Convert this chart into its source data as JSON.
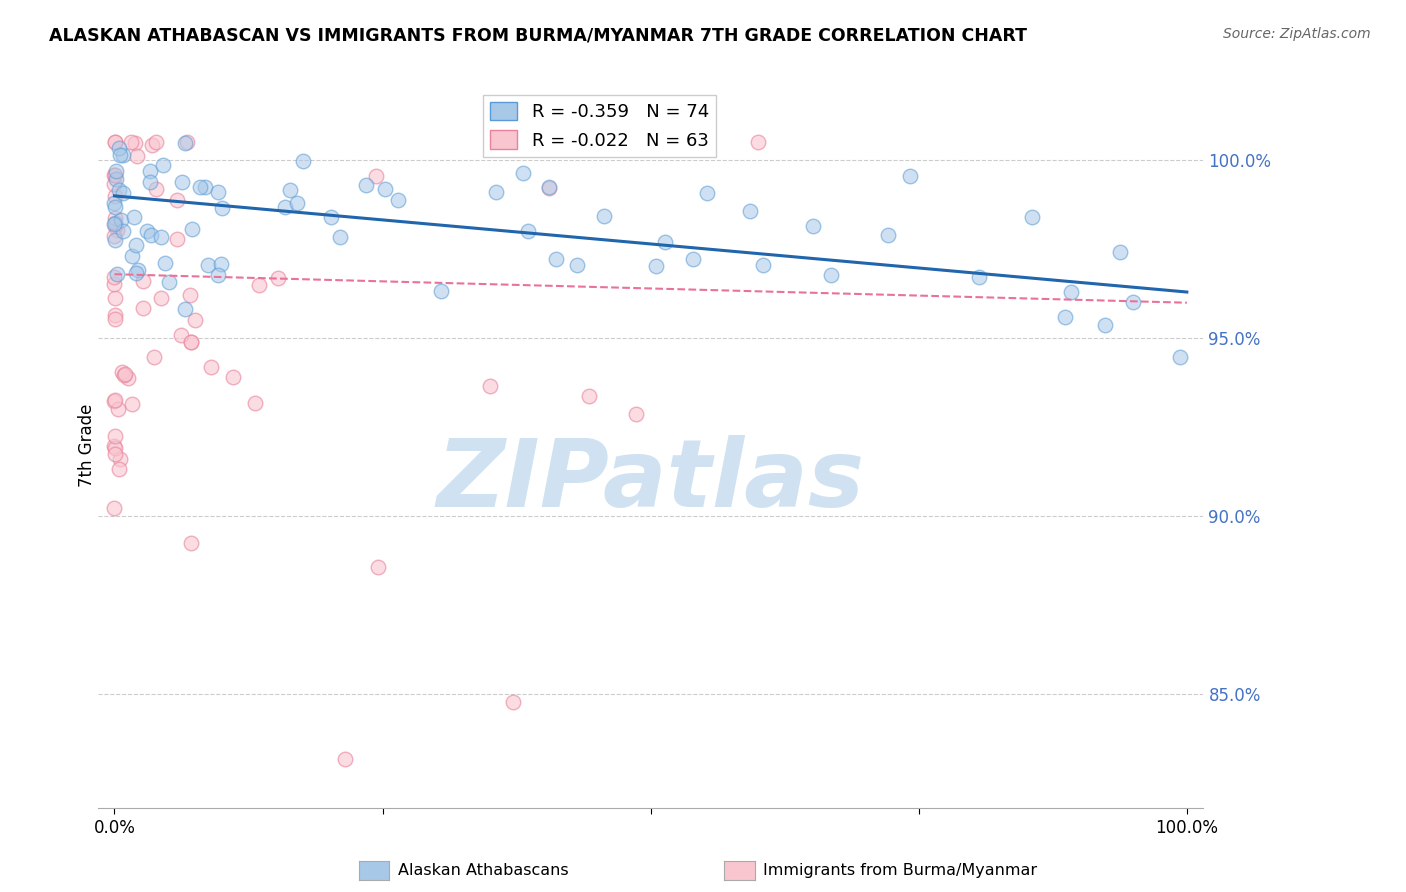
{
  "title": "ALASKAN ATHABASCAN VS IMMIGRANTS FROM BURMA/MYANMAR 7TH GRADE CORRELATION CHART",
  "source": "Source: ZipAtlas.com",
  "ylabel": "7th Grade",
  "y_ticks": [
    0.85,
    0.9,
    0.95,
    1.0
  ],
  "y_tick_labels": [
    "85.0%",
    "90.0%",
    "95.0%",
    "100.0%"
  ],
  "y_min": 0.818,
  "y_max": 1.022,
  "x_min": -0.015,
  "x_max": 1.015,
  "blue_R": -0.359,
  "blue_N": 74,
  "pink_R": -0.022,
  "pink_N": 63,
  "blue_color": "#a8c8e8",
  "blue_edge_color": "#5b9bd5",
  "blue_line_color": "#2166ac",
  "pink_color": "#f9c6d0",
  "pink_edge_color": "#e8829a",
  "pink_line_color": "#e8729a",
  "blue_line_start_y": 0.99,
  "blue_line_end_y": 0.963,
  "pink_line_start_y": 0.968,
  "pink_line_end_y": 0.96,
  "watermark_text": "ZIPatlas",
  "watermark_color": "#c8ddf0",
  "legend_label_blue": "R = -0.359   N = 74",
  "legend_label_pink": "R = -0.022   N = 63",
  "bottom_label_blue": "Alaskan Athabascans",
  "bottom_label_pink": "Immigrants from Burma/Myanmar"
}
